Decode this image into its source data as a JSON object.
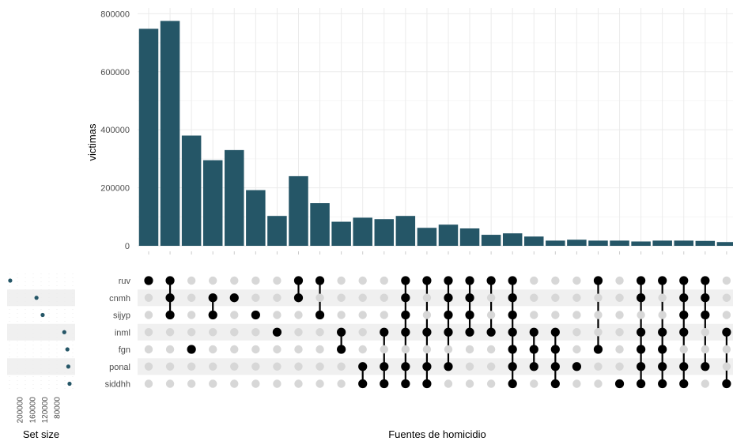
{
  "colors": {
    "bar": "#255667",
    "dot_active": "#000000",
    "dot_inactive": "#d7d7d7",
    "stripe": "#f0f0f0",
    "grid": "#ebebeb",
    "text": "#4d4d4d",
    "title": "#000000"
  },
  "chart_data": {
    "type": "bar",
    "ylabel": "victimas",
    "xlabel": "Fuentes de homicidio",
    "set_size_label": "Set size",
    "ylim": [
      0,
      820000
    ],
    "y_ticks": [
      0,
      200000,
      400000,
      600000,
      800000
    ],
    "y_tick_labels": [
      "0",
      "200000",
      "400000",
      "600000",
      "800000"
    ],
    "grid": true,
    "sets": [
      "ruv",
      "cnmh",
      "sijyp",
      "inml",
      "fgn",
      "ponal",
      "siddhh"
    ],
    "set_sizes": [
      230000,
      145000,
      125000,
      55000,
      45000,
      42000,
      38000
    ],
    "set_size_ticks": [
      200000,
      160000,
      120000,
      80000
    ],
    "set_size_tick_labels": [
      "200000",
      "160000",
      "120000",
      "80000"
    ],
    "set_size_range": [
      240000,
      20000
    ],
    "intersection_values": [
      748000,
      775000,
      380000,
      295000,
      330000,
      192000,
      103000,
      240000,
      147000,
      83000,
      97000,
      92000,
      103000,
      62000,
      73000,
      60000,
      38000,
      43000,
      32000,
      18000,
      21000,
      18000,
      18000,
      15000,
      18000,
      18000,
      17000,
      13000
    ],
    "intersections": [
      [
        "ruv"
      ],
      [
        "ruv",
        "cnmh",
        "sijyp"
      ],
      [
        "fgn"
      ],
      [
        "cnmh",
        "sijyp"
      ],
      [
        "cnmh"
      ],
      [
        "sijyp"
      ],
      [
        "inml"
      ],
      [
        "ruv",
        "cnmh"
      ],
      [
        "ruv",
        "sijyp"
      ],
      [
        "inml",
        "fgn"
      ],
      [
        "ponal",
        "siddhh"
      ],
      [
        "inml",
        "ponal",
        "siddhh"
      ],
      [
        "ruv",
        "cnmh",
        "sijyp",
        "inml",
        "ponal",
        "siddhh"
      ],
      [
        "ruv",
        "inml",
        "ponal",
        "siddhh"
      ],
      [
        "ruv",
        "cnmh",
        "sijyp",
        "inml",
        "ponal"
      ],
      [
        "ruv",
        "cnmh",
        "sijyp",
        "inml"
      ],
      [
        "ruv",
        "inml"
      ],
      [
        "ruv",
        "cnmh",
        "sijyp",
        "inml",
        "fgn",
        "ponal",
        "siddhh"
      ],
      [
        "inml",
        "fgn",
        "ponal"
      ],
      [
        "inml",
        "fgn",
        "ponal",
        "siddhh"
      ],
      [
        "ponal"
      ],
      [
        "ruv",
        "fgn"
      ],
      [
        "siddhh"
      ],
      [
        "ruv",
        "cnmh",
        "inml",
        "fgn",
        "ponal",
        "siddhh"
      ],
      [
        "ruv",
        "inml",
        "fgn",
        "ponal",
        "siddhh"
      ],
      [
        "ruv",
        "cnmh",
        "sijyp",
        "inml",
        "ponal",
        "siddhh"
      ],
      [
        "ruv",
        "cnmh",
        "sijyp",
        "ponal"
      ],
      [
        "inml",
        "siddhh"
      ]
    ]
  }
}
